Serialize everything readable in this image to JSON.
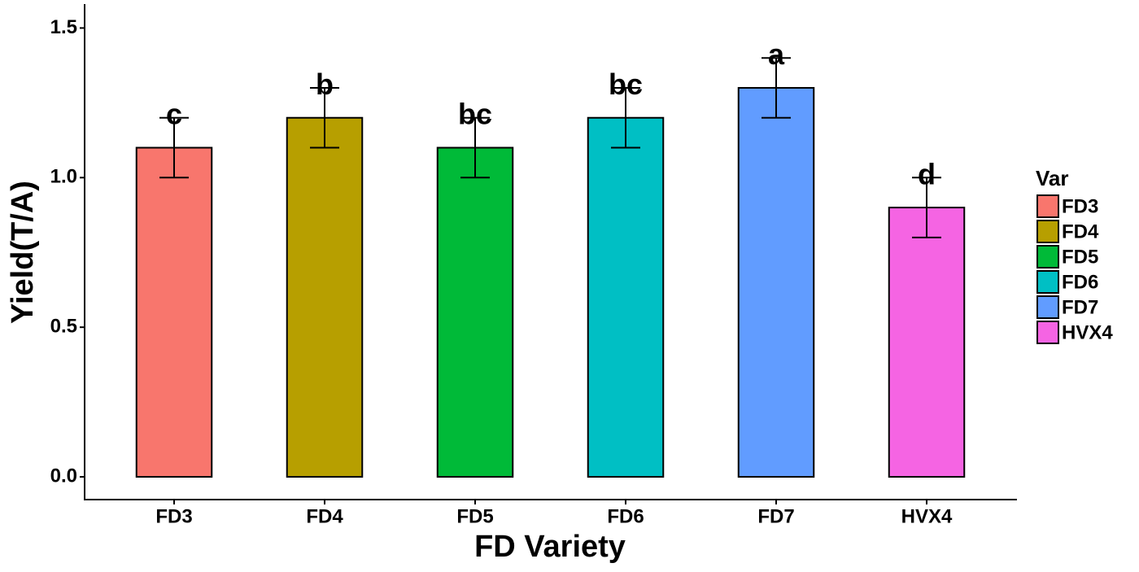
{
  "chart_data": {
    "type": "bar",
    "x_label": "FD Variety",
    "y_label": "Yield(T/A)",
    "categories": [
      "FD3",
      "FD4",
      "FD5",
      "FD6",
      "FD7",
      "HVX4"
    ],
    "values": [
      1.1,
      1.2,
      1.1,
      1.2,
      1.3,
      0.9
    ],
    "errors": [
      0.1,
      0.1,
      0.1,
      0.1,
      0.1,
      0.1
    ],
    "letters": [
      "c",
      "b",
      "bc",
      "bc",
      "a",
      "d"
    ],
    "colors": [
      "#f8766d",
      "#b79f00",
      "#00ba38",
      "#00bfc4",
      "#619cff",
      "#f564e3"
    ],
    "legend_title": "Var",
    "ylim": [
      -0.076,
      1.58
    ],
    "yticks": [
      {
        "value": 0,
        "label": "0.0"
      },
      0.5,
      {
        "value": 1,
        "label": "1.0"
      },
      1.5
    ],
    "grid": false
  }
}
